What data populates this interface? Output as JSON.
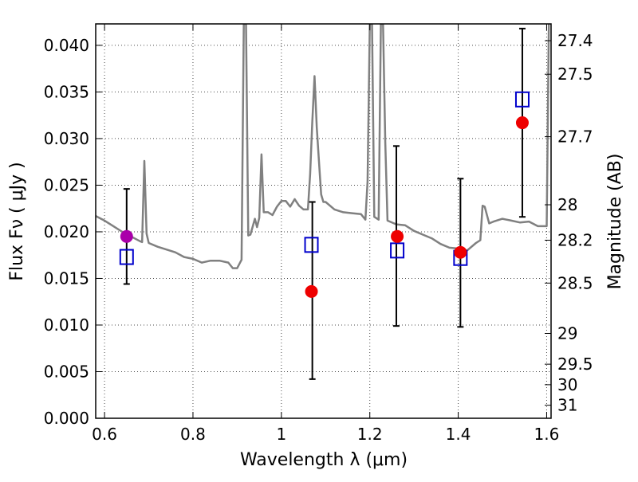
{
  "chart_data": {
    "type": "scatter",
    "title": "",
    "xlabel": "Wavelength  λ (μm)",
    "ylabel_left": "Flux  Fν  ( μJy )",
    "ylabel_right": "Magnitude (AB)",
    "xlim": [
      0.58,
      1.61
    ],
    "ylim": [
      0.0,
      0.0423
    ],
    "grid": true,
    "x_ticks": [
      0.6,
      0.8,
      1.0,
      1.2,
      1.4,
      1.6
    ],
    "x_tick_labels": [
      "0.6",
      "0.8",
      "1",
      "1.2",
      "1.4",
      "1.6"
    ],
    "y_ticks": [
      0.0,
      0.005,
      0.01,
      0.015,
      0.02,
      0.025,
      0.03,
      0.035,
      0.04
    ],
    "y_tick_labels": [
      "0.000",
      "0.005",
      "0.010",
      "0.015",
      "0.020",
      "0.025",
      "0.030",
      "0.035",
      "0.040"
    ],
    "right_axis_ticks": [
      {
        "label": "27.4",
        "flux": 0.0405
      },
      {
        "label": "27.5",
        "flux": 0.0369
      },
      {
        "label": "27.7",
        "flux": 0.0302
      },
      {
        "label": "28",
        "flux": 0.0229
      },
      {
        "label": "28.2",
        "flux": 0.0191
      },
      {
        "label": "28.5",
        "flux": 0.0145
      },
      {
        "label": "29",
        "flux": 0.0091
      },
      {
        "label": "29.5",
        "flux": 0.0058
      },
      {
        "label": "30",
        "flux": 0.0036
      },
      {
        "label": "31",
        "flux": 0.0014
      }
    ],
    "series": [
      {
        "type": "line",
        "color": "#808080",
        "x": [
          0.58,
          0.6,
          0.62,
          0.64,
          0.66,
          0.68,
          0.685,
          0.69,
          0.695,
          0.7,
          0.72,
          0.74,
          0.76,
          0.78,
          0.8,
          0.82,
          0.84,
          0.86,
          0.88,
          0.89,
          0.9,
          0.91,
          0.915,
          0.92,
          0.925,
          0.93,
          0.94,
          0.945,
          0.95,
          0.955,
          0.96,
          0.97,
          0.98,
          0.99,
          1.0,
          1.01,
          1.02,
          1.03,
          1.04,
          1.05,
          1.06,
          1.065,
          1.07,
          1.075,
          1.08,
          1.085,
          1.09,
          1.095,
          1.1,
          1.12,
          1.14,
          1.16,
          1.18,
          1.19,
          1.195,
          1.2,
          1.205,
          1.21,
          1.22,
          1.225,
          1.23,
          1.235,
          1.24,
          1.26,
          1.28,
          1.3,
          1.32,
          1.34,
          1.36,
          1.38,
          1.4,
          1.42,
          1.44,
          1.45,
          1.455,
          1.46,
          1.47,
          1.48,
          1.5,
          1.52,
          1.54,
          1.56,
          1.58,
          1.59,
          1.6,
          1.605
        ],
        "y": [
          0.0217,
          0.0212,
          0.0206,
          0.02,
          0.0195,
          0.019,
          0.0189,
          0.0276,
          0.0198,
          0.0188,
          0.0184,
          0.0181,
          0.0178,
          0.0173,
          0.0171,
          0.0167,
          0.0169,
          0.0169,
          0.0167,
          0.0161,
          0.0161,
          0.017,
          0.0423,
          0.0423,
          0.0196,
          0.0197,
          0.0214,
          0.0205,
          0.0215,
          0.0283,
          0.0221,
          0.0221,
          0.0218,
          0.0227,
          0.0233,
          0.0233,
          0.0227,
          0.0235,
          0.0228,
          0.0224,
          0.0224,
          0.0262,
          0.0318,
          0.0367,
          0.0312,
          0.0275,
          0.024,
          0.0232,
          0.0232,
          0.0224,
          0.0221,
          0.022,
          0.0219,
          0.0213,
          0.0254,
          0.0423,
          0.0423,
          0.0216,
          0.0213,
          0.0423,
          0.0423,
          0.0296,
          0.0212,
          0.0208,
          0.0207,
          0.0201,
          0.0197,
          0.0193,
          0.0187,
          0.0183,
          0.0182,
          0.018,
          0.0188,
          0.0191,
          0.0228,
          0.0227,
          0.0209,
          0.0211,
          0.0214,
          0.0212,
          0.021,
          0.0211,
          0.0206,
          0.0206,
          0.0206,
          0.0423
        ]
      },
      {
        "type": "errorbar",
        "color": "#000000",
        "x": [
          0.65,
          1.07,
          1.26,
          1.405,
          1.545
        ],
        "y_low": [
          0.0144,
          0.0042,
          0.0099,
          0.0098,
          0.0216
        ],
        "y_high": [
          0.0246,
          0.0232,
          0.0292,
          0.0257,
          0.0418
        ]
      },
      {
        "type": "scatter",
        "marker": "open-square",
        "color": "#0000cc",
        "x": [
          0.65,
          1.068,
          1.262,
          1.405,
          1.545
        ],
        "y": [
          0.0173,
          0.0186,
          0.018,
          0.0172,
          0.0342
        ]
      },
      {
        "type": "scatter",
        "marker": "filled-circle",
        "color": "#ee0000",
        "x": [
          1.068,
          1.262,
          1.405,
          1.545
        ],
        "y": [
          0.0136,
          0.0195,
          0.0178,
          0.0317
        ]
      },
      {
        "type": "scatter",
        "marker": "filled-circle",
        "color": "#aa00aa",
        "x": [
          0.65
        ],
        "y": [
          0.0195
        ]
      }
    ]
  }
}
